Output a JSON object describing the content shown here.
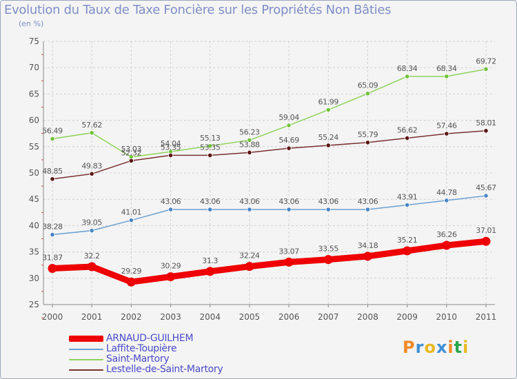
{
  "header": {
    "title": "Evolution du Taux de Taxe Foncière sur les Propriétés Non Bâties",
    "subtitle": "(en %)"
  },
  "logo": {
    "text": [
      "P",
      "r",
      "o",
      "x",
      "i",
      "t",
      "i"
    ],
    "colors": [
      "#f08a24",
      "#3c8fd6",
      "#e8b820",
      "#3c8fd6",
      "#f08a24",
      "#2ba84a",
      "#e8b820"
    ]
  },
  "chart_data": {
    "type": "line",
    "title": "Evolution du Taux de Taxe Foncière sur les Propriétés Non Bâties",
    "ylabel": "(en %)",
    "xlabel": "",
    "ylim": [
      25,
      75
    ],
    "yticks": [
      25,
      30,
      35,
      40,
      45,
      50,
      55,
      60,
      65,
      70,
      75
    ],
    "grid": true,
    "legend_position": "bottom-left",
    "categories": [
      "2000",
      "2001",
      "2002",
      "2003",
      "2004",
      "2005",
      "2006",
      "2007",
      "2008",
      "2009",
      "2010",
      "2011"
    ],
    "series": [
      {
        "name": "Saint-Martory",
        "color": "#8fd25a",
        "marker": "#71c23a",
        "emphasis": false,
        "values": [
          56.49,
          57.62,
          53.03,
          54.04,
          55.13,
          56.23,
          59.04,
          61.99,
          65.09,
          68.34,
          68.34,
          69.72
        ],
        "labels": [
          "56.49",
          "57.62",
          "53.03",
          "54.04",
          "55.13",
          "56.23",
          "59.04",
          "61.99",
          "65.09",
          "68.34",
          "68.34",
          "69.72"
        ]
      },
      {
        "name": "Lestelle-de-Saint-Martory",
        "color": "#7a2f2f",
        "marker": "#5a1616",
        "emphasis": false,
        "values": [
          48.85,
          49.83,
          52.32,
          53.35,
          53.35,
          53.88,
          54.69,
          55.24,
          55.79,
          56.62,
          57.46,
          58.01
        ],
        "labels": [
          "48.85",
          "49.83",
          "52.32",
          "53.35",
          "53.35",
          "53.88",
          "54.69",
          "55.24",
          "55.79",
          "56.62",
          "57.46",
          "58.01"
        ]
      },
      {
        "name": "Laffite-Toupière",
        "color": "#6a9fd0",
        "marker": "#4a86c4",
        "emphasis": false,
        "values": [
          38.28,
          39.05,
          41.01,
          43.06,
          43.06,
          43.06,
          43.06,
          43.06,
          43.06,
          43.91,
          44.78,
          45.67
        ],
        "labels": [
          "38.28",
          "39.05",
          "41.01",
          "43.06",
          "43.06",
          "43.06",
          "43.06",
          "43.06",
          "43.06",
          "43.91",
          "44.78",
          "45.67"
        ]
      },
      {
        "name": "ARNAUD-GUILHEM",
        "color": "#ee0000",
        "marker": "#ee0000",
        "emphasis": true,
        "values": [
          31.87,
          32.2,
          29.29,
          30.29,
          31.3,
          32.24,
          33.07,
          33.55,
          34.18,
          35.21,
          36.26,
          37.01
        ],
        "labels": [
          "31.87",
          "32.2",
          "29.29",
          "30.29",
          "31.3",
          "32.24",
          "33.07",
          "33.55",
          "34.18",
          "35.21",
          "36.26",
          "37.01"
        ]
      }
    ],
    "legend_order": [
      "ARNAUD-GUILHEM",
      "Laffite-Toupière",
      "Saint-Martory",
      "Lestelle-de-Saint-Martory"
    ]
  }
}
